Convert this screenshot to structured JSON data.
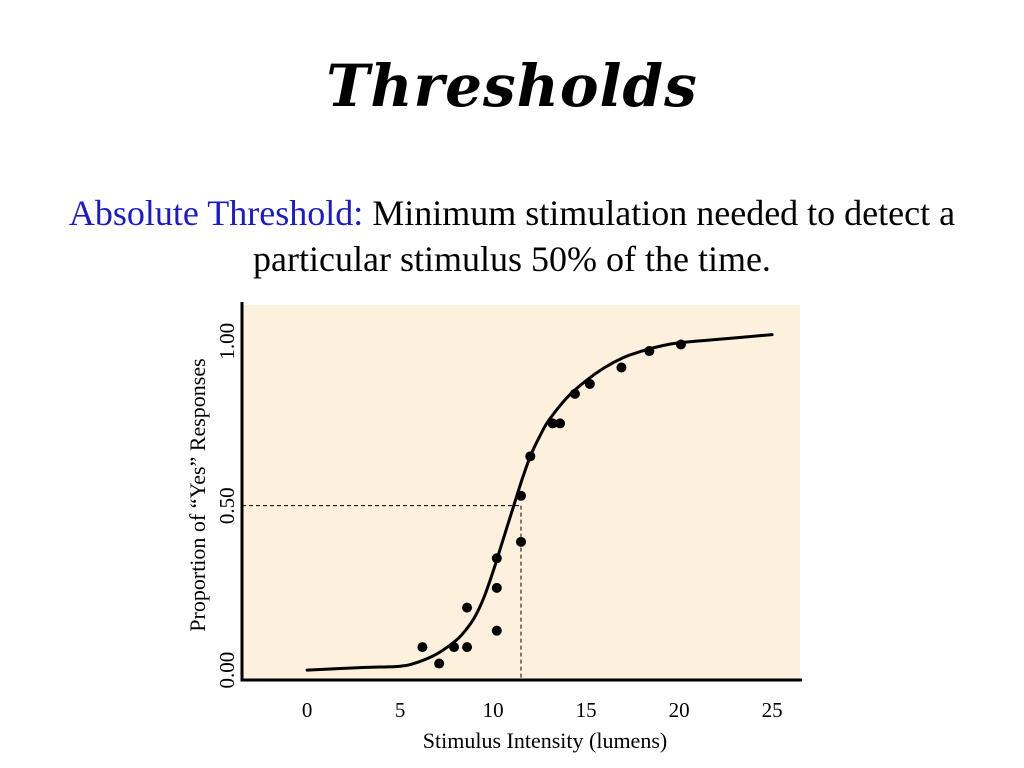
{
  "slide": {
    "title": "Thresholds",
    "definition_term": "Absolute Threshold:",
    "definition_text": "Minimum stimulation needed to detect a particular stimulus 50% of the time."
  },
  "colors": {
    "plot_background": "#fdf0dc",
    "term": "#1a1acc",
    "ink": "#000000"
  },
  "chart_data": {
    "type": "scatter",
    "title": "",
    "xlabel": "Stimulus Intensity (lumens)",
    "ylabel": "Proportion of “Yes” Responses",
    "xlim": [
      -3.5,
      26.5
    ],
    "ylim": [
      -0.03,
      1.11
    ],
    "x_ticks": [
      0,
      5,
      10,
      15,
      20,
      25
    ],
    "x_tick_labels": [
      "0",
      "5",
      "10",
      "15",
      "20",
      "25"
    ],
    "y_ticks": [
      0.0,
      0.5,
      1.0
    ],
    "y_tick_labels": [
      "0.00",
      "0.50",
      "1.00"
    ],
    "grid": false,
    "series": [
      {
        "kind": "points",
        "x": [
          6.2,
          7.1,
          7.9,
          8.6,
          8.6,
          10.2,
          10.2,
          10.2,
          11.5,
          11.5,
          12.0,
          13.2,
          13.6,
          14.4,
          15.2,
          16.9,
          18.4,
          20.1
        ],
        "y": [
          0.07,
          0.02,
          0.07,
          0.07,
          0.19,
          0.12,
          0.25,
          0.34,
          0.39,
          0.53,
          0.65,
          0.75,
          0.75,
          0.84,
          0.87,
          0.92,
          0.97,
          0.99
        ]
      },
      {
        "kind": "fitted-curve",
        "x": [
          0,
          3,
          5,
          6,
          7,
          8,
          8.5,
          9,
          9.5,
          10,
          10.5,
          11,
          11.5,
          12,
          12.5,
          13,
          14,
          15,
          16,
          17,
          18,
          19,
          20,
          22,
          25
        ],
        "y": [
          0.0,
          0.008,
          0.012,
          0.025,
          0.05,
          0.09,
          0.12,
          0.16,
          0.22,
          0.3,
          0.39,
          0.48,
          0.57,
          0.65,
          0.71,
          0.76,
          0.83,
          0.88,
          0.92,
          0.95,
          0.97,
          0.985,
          0.995,
          1.005,
          1.02
        ]
      }
    ],
    "annotations": [
      {
        "type": "threshold-lines",
        "x": 11.5,
        "y": 0.5,
        "style": "dashed"
      }
    ]
  }
}
